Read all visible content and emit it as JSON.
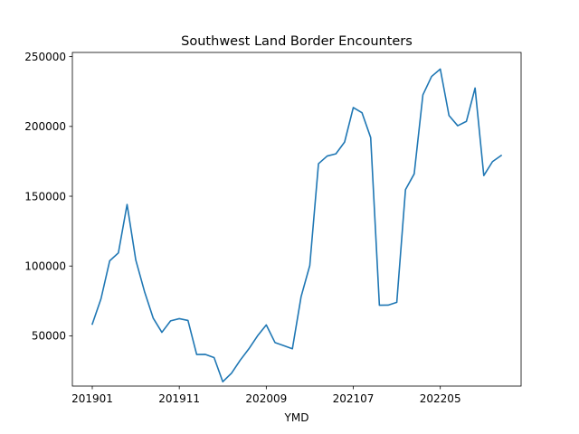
{
  "chart_data": {
    "type": "line",
    "title": "Southwest Land Border Encounters",
    "xlabel": "YMD",
    "ylabel": "",
    "grid": false,
    "legend": "none",
    "ylim": [
      14000,
      253000
    ],
    "xticks": [
      "201901",
      "201911",
      "202009",
      "202107",
      "202205"
    ],
    "yticks": [
      50000,
      100000,
      150000,
      200000,
      250000
    ],
    "yticklabels": [
      "50000",
      "100000",
      "150000",
      "200000",
      "250000"
    ],
    "series": [
      {
        "name": "",
        "color": "#1f77b4",
        "x": [
          "201901",
          "201902",
          "201903",
          "201904",
          "201905",
          "201906",
          "201907",
          "201908",
          "201909",
          "201910",
          "201911",
          "201912",
          "202001",
          "202002",
          "202003",
          "202004",
          "202005",
          "202006",
          "202007",
          "202008",
          "202009",
          "202010",
          "202011",
          "202012",
          "202101",
          "202102",
          "202103",
          "202104",
          "202105",
          "202106",
          "202107",
          "202108",
          "202109",
          "202110",
          "202111",
          "202112",
          "202201",
          "202202",
          "202203",
          "202204",
          "202205",
          "202206",
          "202207",
          "202208",
          "202209",
          "202210",
          "202211",
          "202212"
        ],
        "values": [
          58400,
          76500,
          103700,
          109400,
          144100,
          104300,
          81800,
          62700,
          52500,
          60700,
          62300,
          61000,
          36600,
          36700,
          34400,
          17100,
          23200,
          32500,
          40700,
          50000,
          57800,
          45200,
          43000,
          40700,
          78000,
          100400,
          173300,
          178800,
          180400,
          188800,
          213500,
          209800,
          192000,
          71900,
          72000,
          74000,
          154700,
          166000,
          222600,
          235800,
          241100,
          207800,
          200500,
          203600,
          227500,
          164800,
          174800,
          179200
        ]
      }
    ]
  }
}
